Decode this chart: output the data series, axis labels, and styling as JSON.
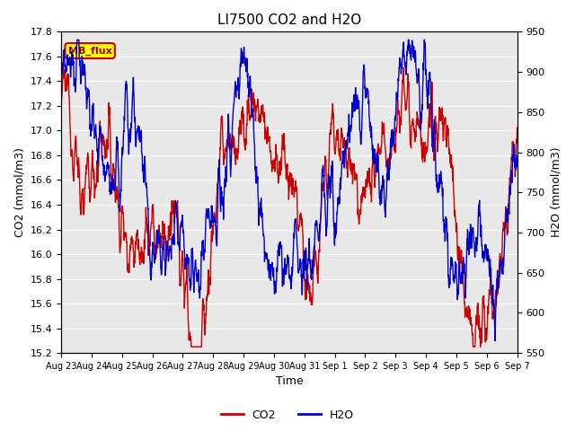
{
  "title": "LI7500 CO2 and H2O",
  "xlabel": "Time",
  "ylabel_left": "CO2 (mmol/m3)",
  "ylabel_right": "H2O (mmol/m3)",
  "ylim_left": [
    15.2,
    17.8
  ],
  "ylim_right": [
    550,
    950
  ],
  "yticks_left": [
    15.2,
    15.4,
    15.6,
    15.8,
    16.0,
    16.2,
    16.4,
    16.6,
    16.8,
    17.0,
    17.2,
    17.4,
    17.6,
    17.8
  ],
  "yticks_right": [
    550,
    600,
    650,
    700,
    750,
    800,
    850,
    900,
    950
  ],
  "x_labels": [
    "Aug 23",
    "Aug 24",
    "Aug 25",
    "Aug 26",
    "Aug 27",
    "Aug 28",
    "Aug 29",
    "Aug 30",
    "Aug 31",
    "Sep 1",
    "Sep 2",
    "Sep 3",
    "Sep 4",
    "Sep 5",
    "Sep 6",
    "Sep 7"
  ],
  "co2_color": "#cc0000",
  "h2o_color": "#0000cc",
  "plot_bg_color": "#e8e8e8",
  "grid_color": "#ffffff",
  "annotation_text": "MB_flux",
  "annotation_bg": "#ffff00",
  "annotation_border": "#cc0000",
  "legend_co2": "CO2",
  "legend_h2o": "H2O",
  "line_width": 1.0,
  "n_points": 1600,
  "seed": 12345
}
